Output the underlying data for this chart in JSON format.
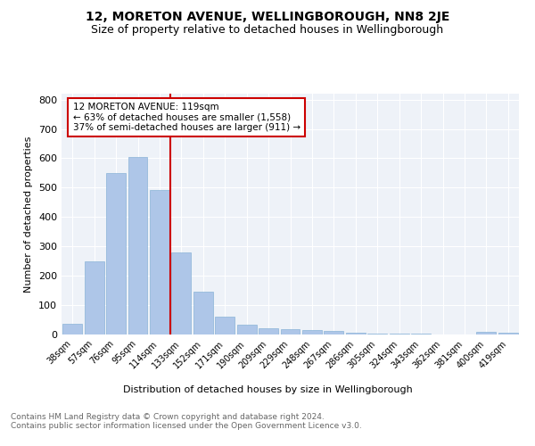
{
  "title": "12, MORETON AVENUE, WELLINGBOROUGH, NN8 2JE",
  "subtitle": "Size of property relative to detached houses in Wellingborough",
  "xlabel": "Distribution of detached houses by size in Wellingborough",
  "ylabel": "Number of detached properties",
  "categories": [
    "38sqm",
    "57sqm",
    "76sqm",
    "95sqm",
    "114sqm",
    "133sqm",
    "152sqm",
    "171sqm",
    "190sqm",
    "209sqm",
    "229sqm",
    "248sqm",
    "267sqm",
    "286sqm",
    "305sqm",
    "324sqm",
    "343sqm",
    "362sqm",
    "381sqm",
    "400sqm",
    "419sqm"
  ],
  "values": [
    35,
    250,
    550,
    605,
    493,
    280,
    145,
    62,
    33,
    22,
    17,
    15,
    12,
    5,
    4,
    3,
    2,
    1,
    1,
    8,
    7
  ],
  "bar_color": "#aec6e8",
  "bar_edge_color": "#8ab4d8",
  "vline_x": 4.5,
  "vline_color": "#cc0000",
  "annotation_text": "12 MORETON AVENUE: 119sqm\n← 63% of detached houses are smaller (1,558)\n37% of semi-detached houses are larger (911) →",
  "annotation_box_color": "white",
  "annotation_box_edge": "#cc0000",
  "ylim": [
    0,
    820
  ],
  "yticks": [
    0,
    100,
    200,
    300,
    400,
    500,
    600,
    700,
    800
  ],
  "bg_color": "#eef2f8",
  "footer": "Contains HM Land Registry data © Crown copyright and database right 2024.\nContains public sector information licensed under the Open Government Licence v3.0.",
  "title_fontsize": 10,
  "subtitle_fontsize": 9,
  "footer_fontsize": 6.5,
  "ylabel_fontsize": 8,
  "xlabel_fontsize": 8
}
